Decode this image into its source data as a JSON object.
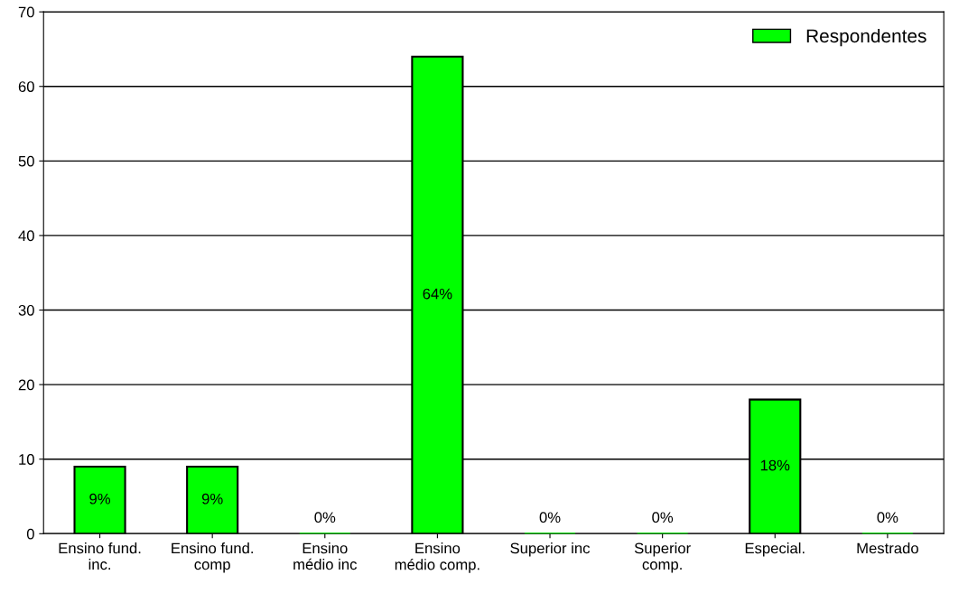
{
  "chart_data": {
    "type": "bar",
    "categories": [
      "Ensino fund.\ninc.",
      "Ensino fund.\ncomp",
      "Ensino\nmédio inc",
      "Ensino\nmédio comp.",
      "Superior inc",
      "Superior\ncomp.",
      "Especial.",
      "Mestrado"
    ],
    "series": [
      {
        "name": "Respondentes",
        "color": "#00ff00",
        "values": [
          9,
          9,
          0,
          64,
          0,
          0,
          18,
          0
        ],
        "value_labels": [
          "9%",
          "9%",
          "0%",
          "64%",
          "0%",
          "0%",
          "18%",
          "0%"
        ]
      }
    ],
    "ylim": [
      0,
      70
    ],
    "yticks": [
      0,
      10,
      20,
      30,
      40,
      50,
      60,
      70
    ],
    "grid": "y",
    "legend": "top right"
  }
}
